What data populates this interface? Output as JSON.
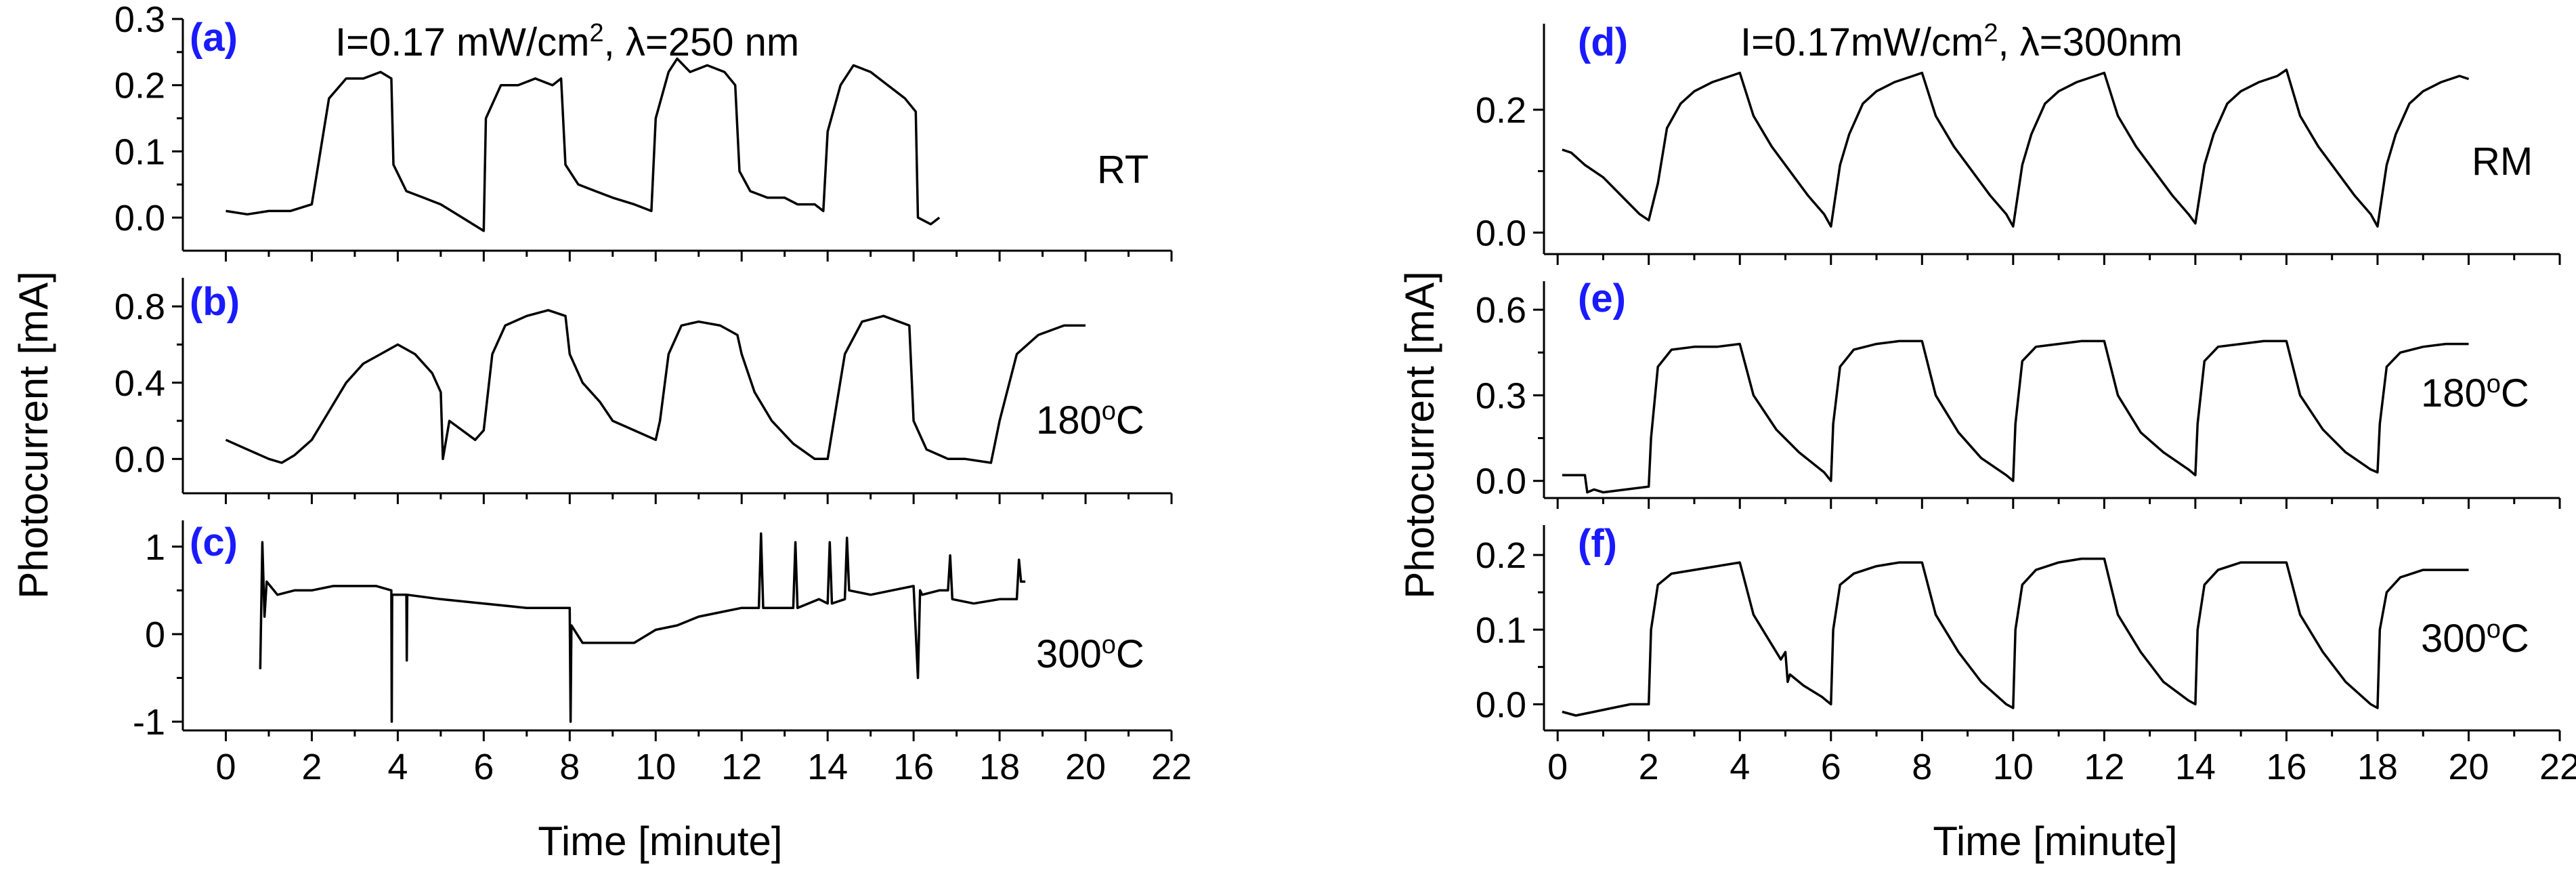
{
  "figure": {
    "left_title_prefix": "I=0.17 mW/cm",
    "left_title_sup": "2",
    "left_title_suffix": ", λ=250 nm",
    "right_title_prefix": "I=0.17mW/cm",
    "right_title_sup": "2",
    "right_title_suffix": ", λ=300nm",
    "ylabel": "Photocurrent [mA]",
    "xlabel": "Time [minute]"
  },
  "chart_data": [
    {
      "type": "line",
      "panel": "(a)",
      "condition": "RT",
      "xlim": [
        -1,
        22
      ],
      "ylim": [
        -0.05,
        0.3
      ],
      "yticks": [
        0.0,
        0.1,
        0.2,
        0.3
      ],
      "ytick_labels": [
        "0.0",
        "0.1",
        "0.2",
        "0.3"
      ],
      "x": [
        0,
        0.5,
        1.0,
        1.5,
        2.0,
        2.1,
        2.4,
        2.8,
        3.2,
        3.6,
        3.85,
        3.9,
        4.2,
        4.6,
        5.0,
        5.5,
        6.0,
        6.05,
        6.4,
        6.8,
        7.2,
        7.6,
        7.8,
        7.9,
        8.2,
        8.6,
        9.0,
        9.5,
        9.9,
        10.0,
        10.3,
        10.5,
        10.8,
        11.2,
        11.6,
        11.85,
        11.95,
        12.2,
        12.6,
        13.0,
        13.3,
        13.7,
        13.9,
        14.0,
        14.3,
        14.6,
        15.0,
        15.4,
        15.8,
        16.05,
        16.1,
        16.4,
        16.6
      ],
      "y": [
        0.01,
        0.005,
        0.01,
        0.01,
        0.02,
        0.06,
        0.18,
        0.21,
        0.21,
        0.22,
        0.21,
        0.08,
        0.04,
        0.03,
        0.02,
        0.0,
        -0.02,
        0.15,
        0.2,
        0.2,
        0.21,
        0.2,
        0.21,
        0.08,
        0.05,
        0.04,
        0.03,
        0.02,
        0.01,
        0.15,
        0.22,
        0.24,
        0.22,
        0.23,
        0.22,
        0.2,
        0.07,
        0.04,
        0.03,
        0.03,
        0.02,
        0.02,
        0.01,
        0.13,
        0.2,
        0.23,
        0.22,
        0.2,
        0.18,
        0.16,
        0.0,
        -0.01,
        0.0
      ]
    },
    {
      "type": "line",
      "panel": "(b)",
      "condition_prefix": "180",
      "condition_sup": "o",
      "condition_suffix": "C",
      "xlim": [
        -1,
        22
      ],
      "ylim": [
        -0.18,
        0.95
      ],
      "yticks": [
        0.0,
        0.4,
        0.8
      ],
      "ytick_labels": [
        "0.0",
        "0.4",
        "0.8"
      ],
      "x": [
        0,
        0.5,
        1.0,
        1.3,
        1.6,
        2.0,
        2.4,
        2.8,
        3.2,
        3.6,
        4.0,
        4.4,
        4.8,
        5.0,
        5.05,
        5.2,
        5.5,
        5.8,
        6.0,
        6.2,
        6.5,
        7.0,
        7.5,
        7.9,
        8.0,
        8.3,
        8.7,
        9.0,
        9.5,
        10.0,
        10.1,
        10.3,
        10.6,
        11.0,
        11.5,
        11.9,
        12.0,
        12.3,
        12.7,
        13.2,
        13.7,
        14.0,
        14.4,
        14.8,
        15.3,
        15.9,
        16.0,
        16.3,
        16.8,
        17.2,
        17.8,
        18.0,
        18.4,
        18.9,
        19.5,
        20.0
      ],
      "y": [
        0.1,
        0.05,
        0.0,
        -0.02,
        0.02,
        0.1,
        0.25,
        0.4,
        0.5,
        0.55,
        0.6,
        0.55,
        0.45,
        0.35,
        0.0,
        0.2,
        0.15,
        0.1,
        0.15,
        0.55,
        0.7,
        0.75,
        0.78,
        0.75,
        0.55,
        0.4,
        0.3,
        0.2,
        0.15,
        0.1,
        0.2,
        0.55,
        0.7,
        0.72,
        0.7,
        0.65,
        0.55,
        0.35,
        0.2,
        0.08,
        0.0,
        0.0,
        0.55,
        0.72,
        0.75,
        0.7,
        0.2,
        0.05,
        0.0,
        0.0,
        -0.02,
        0.2,
        0.55,
        0.65,
        0.7,
        0.7
      ]
    },
    {
      "type": "line",
      "panel": "(c)",
      "condition_prefix": "300",
      "condition_sup": "o",
      "condition_suffix": "C",
      "xlim": [
        -1,
        22
      ],
      "ylim": [
        -1.1,
        1.3
      ],
      "yticks": [
        -1,
        0,
        1
      ],
      "ytick_labels": [
        "-1",
        "0",
        "1"
      ],
      "x": [
        0.8,
        0.85,
        0.9,
        0.95,
        1.2,
        1.6,
        2.0,
        2.5,
        3.0,
        3.5,
        3.85,
        3.86,
        3.87,
        4.2,
        4.21,
        4.22,
        5.0,
        6.0,
        7.0,
        8.0,
        8.02,
        8.04,
        8.3,
        8.8,
        9.5,
        10.0,
        10.5,
        11.0,
        11.5,
        12.0,
        12.4,
        12.45,
        12.5,
        12.8,
        13.2,
        13.25,
        13.3,
        13.8,
        14.0,
        14.05,
        14.1,
        14.4,
        14.45,
        14.5,
        15.0,
        15.5,
        16.0,
        16.1,
        16.15,
        16.2,
        16.6,
        16.8,
        16.85,
        16.9,
        17.4,
        18.0,
        18.4,
        18.45,
        18.5,
        18.6
      ],
      "y": [
        -0.4,
        1.05,
        0.2,
        0.6,
        0.45,
        0.5,
        0.5,
        0.55,
        0.55,
        0.55,
        0.5,
        -1.0,
        0.45,
        0.45,
        -0.3,
        0.45,
        0.4,
        0.35,
        0.3,
        0.3,
        -1.0,
        0.1,
        -0.1,
        -0.1,
        -0.1,
        0.05,
        0.1,
        0.2,
        0.25,
        0.3,
        0.3,
        1.15,
        0.3,
        0.3,
        0.3,
        1.05,
        0.3,
        0.4,
        0.35,
        1.05,
        0.35,
        0.4,
        1.1,
        0.5,
        0.45,
        0.5,
        0.55,
        -0.5,
        0.5,
        0.45,
        0.5,
        0.5,
        0.9,
        0.4,
        0.35,
        0.4,
        0.4,
        0.85,
        0.6,
        0.6
      ]
    },
    {
      "type": "line",
      "panel": "(d)",
      "condition": "RM",
      "xlim": [
        -0.3,
        22
      ],
      "ylim": [
        -0.035,
        0.34
      ],
      "yticks": [
        0.0,
        0.2
      ],
      "ytick_labels": [
        "0.0",
        "0.2"
      ],
      "x": [
        0.1,
        0.3,
        0.6,
        1.0,
        1.4,
        1.8,
        2.0,
        2.2,
        2.4,
        2.7,
        3.0,
        3.4,
        3.8,
        4.0,
        4.3,
        4.7,
        5.1,
        5.5,
        5.85,
        6.0,
        6.2,
        6.4,
        6.7,
        7.0,
        7.4,
        7.8,
        8.0,
        8.3,
        8.7,
        9.1,
        9.5,
        9.85,
        10.0,
        10.2,
        10.4,
        10.7,
        11.0,
        11.4,
        11.8,
        12.0,
        12.3,
        12.7,
        13.1,
        13.5,
        13.85,
        14.0,
        14.2,
        14.4,
        14.7,
        15.0,
        15.4,
        15.8,
        16.0,
        16.3,
        16.7,
        17.1,
        17.5,
        17.85,
        18.0,
        18.2,
        18.4,
        18.7,
        19.0,
        19.4,
        19.8,
        20.0
      ],
      "y": [
        0.135,
        0.13,
        0.11,
        0.09,
        0.06,
        0.03,
        0.02,
        0.08,
        0.17,
        0.21,
        0.23,
        0.245,
        0.255,
        0.26,
        0.19,
        0.14,
        0.1,
        0.06,
        0.03,
        0.01,
        0.11,
        0.16,
        0.21,
        0.23,
        0.245,
        0.255,
        0.26,
        0.19,
        0.14,
        0.1,
        0.06,
        0.03,
        0.01,
        0.11,
        0.16,
        0.21,
        0.23,
        0.245,
        0.255,
        0.26,
        0.19,
        0.14,
        0.1,
        0.06,
        0.03,
        0.015,
        0.11,
        0.16,
        0.21,
        0.23,
        0.245,
        0.255,
        0.265,
        0.19,
        0.14,
        0.1,
        0.06,
        0.03,
        0.01,
        0.11,
        0.16,
        0.21,
        0.23,
        0.245,
        0.255,
        0.25
      ]
    },
    {
      "type": "line",
      "panel": "(e)",
      "condition_prefix": "180",
      "condition_sup": "o",
      "condition_suffix": "C",
      "xlim": [
        -0.3,
        22
      ],
      "ylim": [
        -0.06,
        0.7
      ],
      "yticks": [
        0.0,
        0.3,
        0.6
      ],
      "ytick_labels": [
        "0.0",
        "0.3",
        "0.6"
      ],
      "x": [
        0.1,
        0.6,
        0.65,
        0.8,
        1.0,
        1.5,
        2.0,
        2.05,
        2.2,
        2.5,
        3.0,
        3.5,
        4.0,
        4.3,
        4.8,
        5.3,
        5.85,
        6.0,
        6.05,
        6.2,
        6.5,
        7.0,
        7.5,
        8.0,
        8.3,
        8.8,
        9.3,
        9.85,
        10.0,
        10.05,
        10.2,
        10.5,
        11.0,
        11.5,
        12.0,
        12.3,
        12.8,
        13.3,
        13.85,
        14.0,
        14.05,
        14.2,
        14.5,
        15.0,
        15.5,
        16.0,
        16.3,
        16.8,
        17.3,
        17.85,
        18.0,
        18.05,
        18.2,
        18.5,
        19.0,
        19.5,
        20.0
      ],
      "y": [
        0.02,
        0.02,
        -0.04,
        -0.03,
        -0.04,
        -0.03,
        -0.02,
        0.15,
        0.4,
        0.46,
        0.47,
        0.47,
        0.48,
        0.3,
        0.18,
        0.1,
        0.03,
        0.0,
        0.2,
        0.4,
        0.46,
        0.48,
        0.49,
        0.49,
        0.3,
        0.17,
        0.08,
        0.02,
        0.0,
        0.2,
        0.42,
        0.47,
        0.48,
        0.49,
        0.49,
        0.3,
        0.17,
        0.1,
        0.04,
        0.02,
        0.2,
        0.42,
        0.47,
        0.48,
        0.49,
        0.49,
        0.3,
        0.18,
        0.1,
        0.04,
        0.03,
        0.2,
        0.4,
        0.45,
        0.47,
        0.48,
        0.48
      ]
    },
    {
      "type": "line",
      "panel": "(f)",
      "condition_prefix": "300",
      "condition_sup": "o",
      "condition_suffix": "C",
      "xlim": [
        -0.3,
        22
      ],
      "ylim": [
        -0.035,
        0.24
      ],
      "yticks": [
        0.0,
        0.1,
        0.2
      ],
      "ytick_labels": [
        "0.0",
        "0.1",
        "0.2"
      ],
      "x": [
        0.1,
        0.4,
        0.8,
        1.2,
        1.6,
        2.0,
        2.05,
        2.2,
        2.5,
        3.0,
        3.5,
        4.0,
        4.3,
        4.6,
        4.9,
        5.0,
        5.05,
        5.1,
        5.4,
        5.8,
        5.9,
        6.0,
        6.05,
        6.2,
        6.5,
        7.0,
        7.5,
        8.0,
        8.3,
        8.8,
        9.3,
        9.85,
        10.0,
        10.05,
        10.2,
        10.5,
        11.0,
        11.5,
        12.0,
        12.3,
        12.8,
        13.3,
        13.85,
        14.0,
        14.05,
        14.2,
        14.5,
        15.0,
        15.5,
        16.0,
        16.3,
        16.8,
        17.3,
        17.85,
        18.0,
        18.05,
        18.2,
        18.5,
        19.0,
        19.5,
        20.0
      ],
      "y": [
        -0.01,
        -0.015,
        -0.01,
        -0.005,
        0.0,
        0.0,
        0.1,
        0.16,
        0.175,
        0.18,
        0.185,
        0.19,
        0.12,
        0.09,
        0.06,
        0.07,
        0.03,
        0.04,
        0.025,
        0.01,
        0.005,
        0.0,
        0.1,
        0.16,
        0.175,
        0.185,
        0.19,
        0.19,
        0.12,
        0.07,
        0.03,
        0.0,
        -0.005,
        0.1,
        0.16,
        0.18,
        0.19,
        0.195,
        0.195,
        0.12,
        0.07,
        0.03,
        0.005,
        0.0,
        0.1,
        0.16,
        0.18,
        0.19,
        0.19,
        0.19,
        0.12,
        0.07,
        0.03,
        0.0,
        -0.005,
        0.1,
        0.15,
        0.17,
        0.18,
        0.18,
        0.18
      ]
    }
  ],
  "xticks": [
    0,
    2,
    4,
    6,
    8,
    10,
    12,
    14,
    16,
    18,
    20,
    22
  ],
  "xtick_labels": [
    "0",
    "2",
    "4",
    "6",
    "8",
    "10",
    "12",
    "14",
    "16",
    "18",
    "20",
    "22"
  ]
}
